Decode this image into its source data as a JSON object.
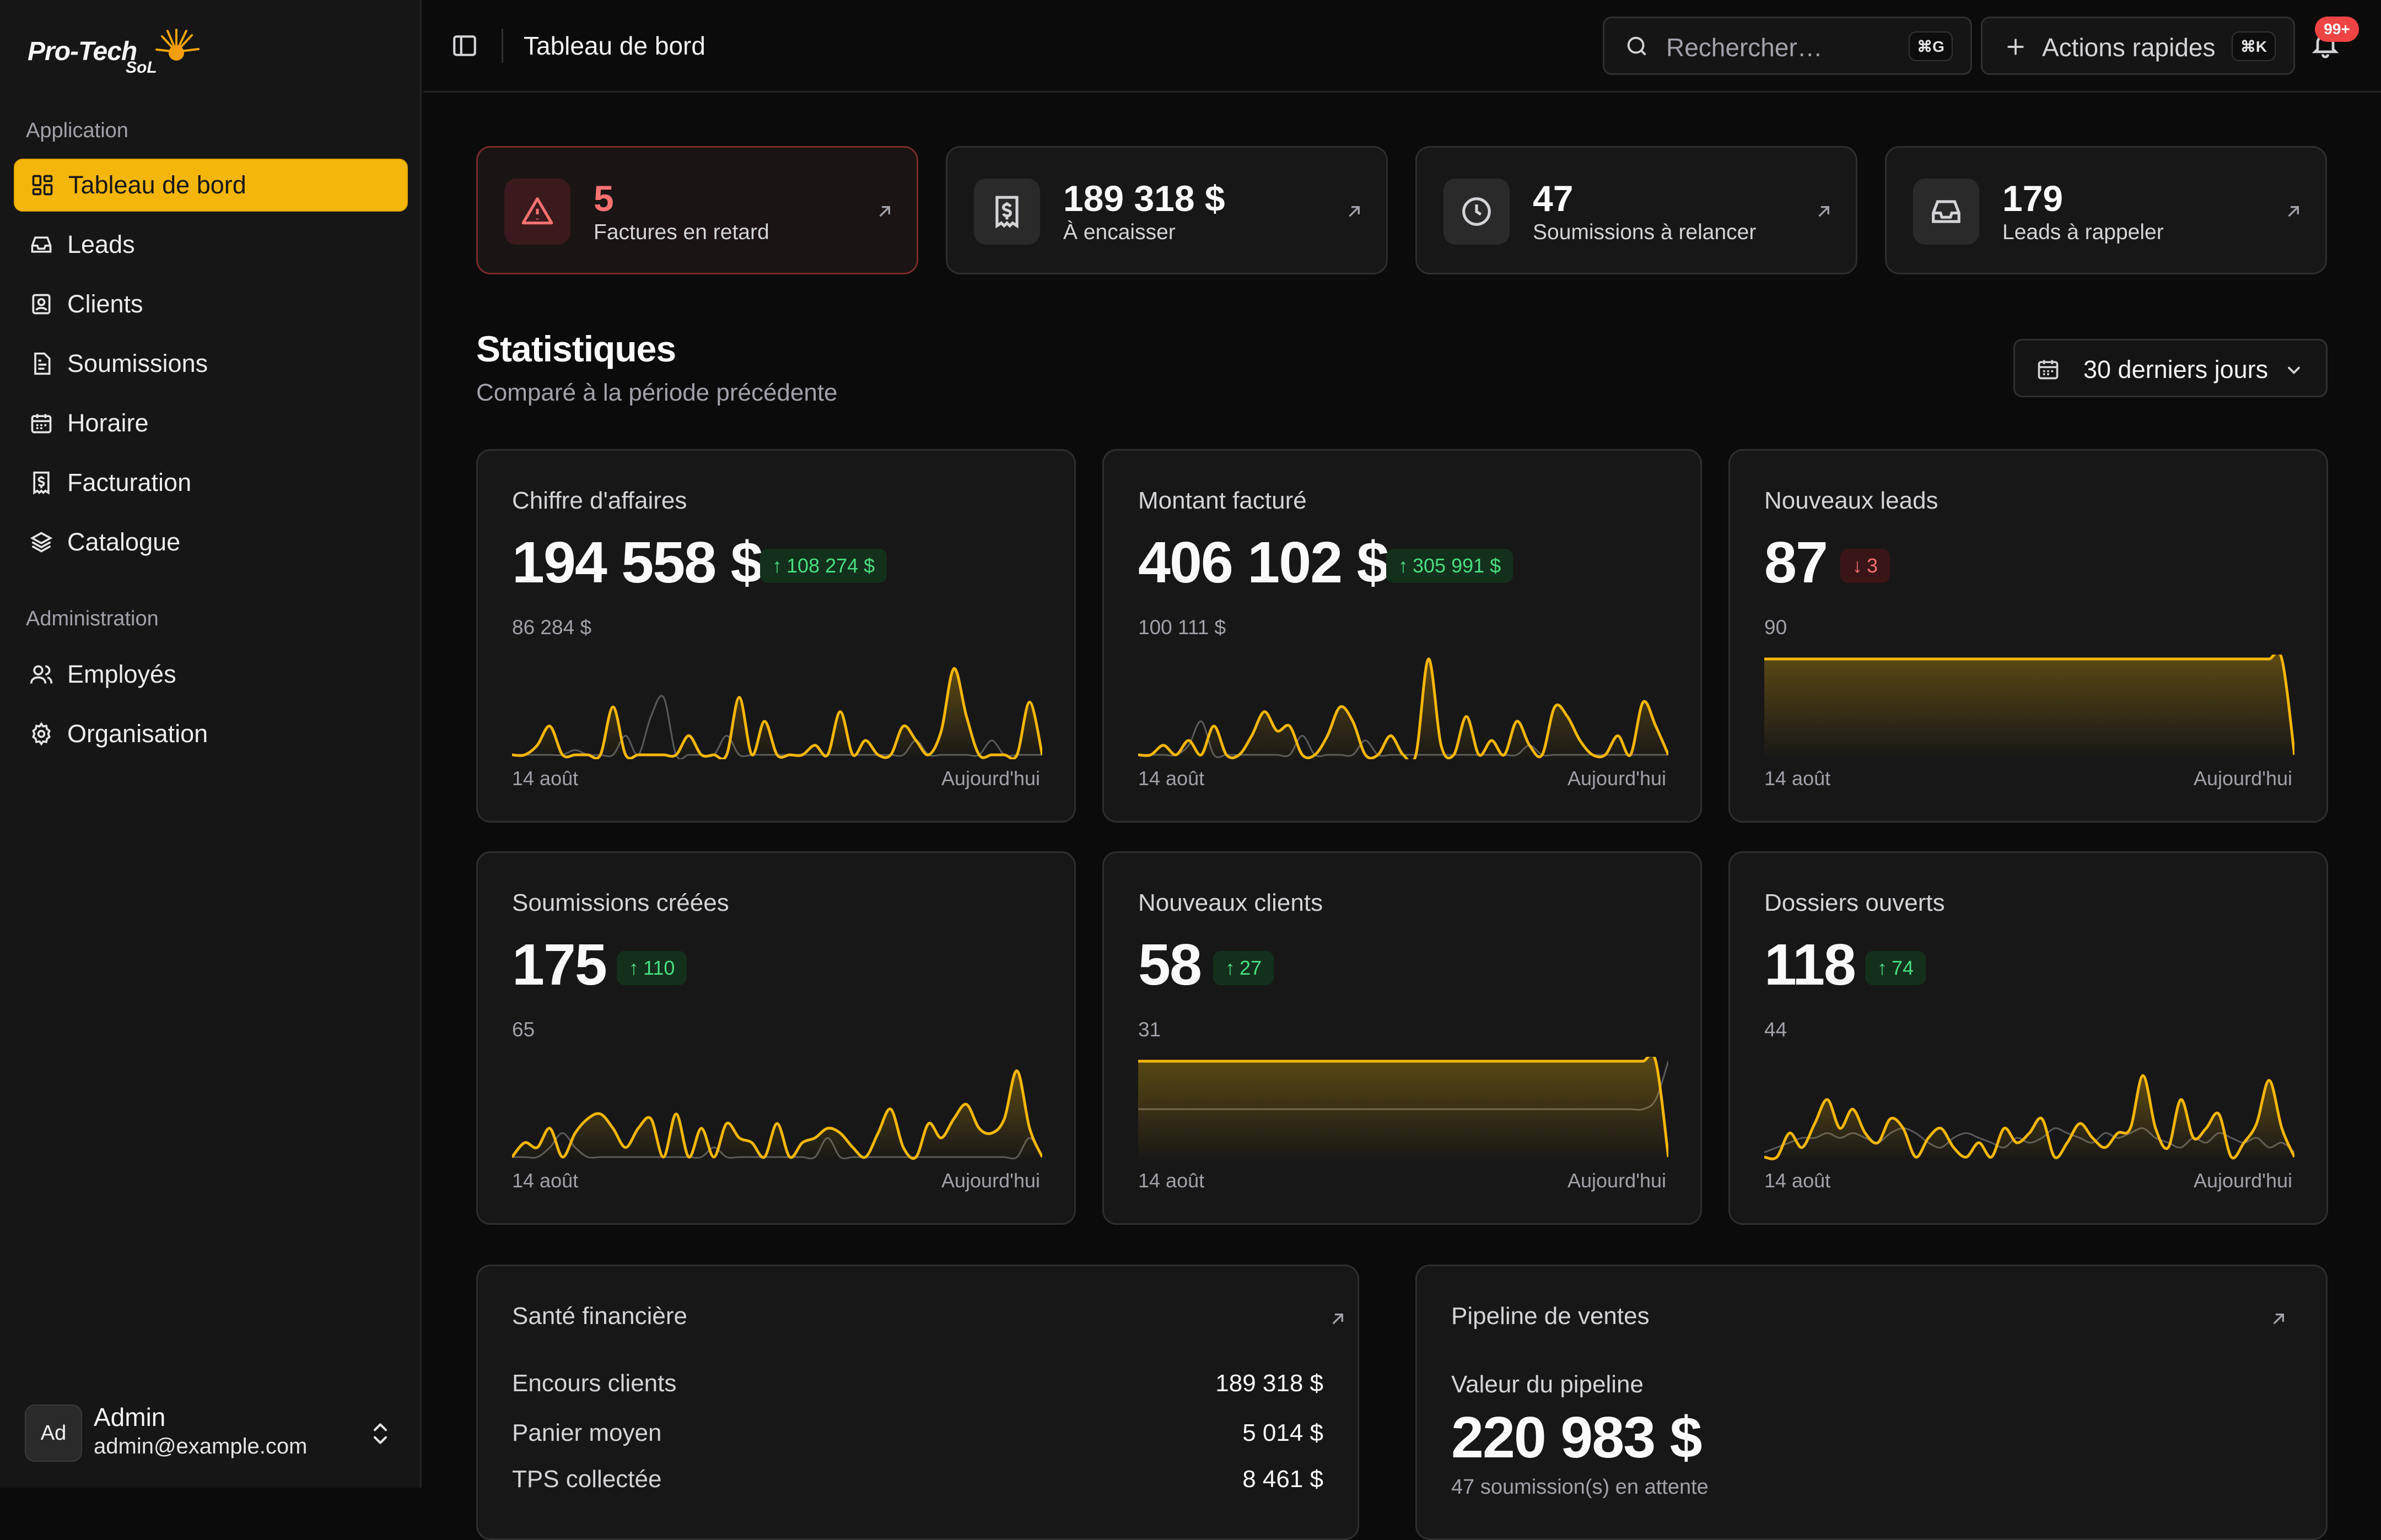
{
  "colors": {
    "accent": "#f5b60b",
    "success": "#4ade80",
    "danger": "#f87171",
    "previous_series": "#5a5a5a"
  },
  "brand": {
    "name": "Pro-Tech",
    "sub": "SoL"
  },
  "sidebar": {
    "section_application": "Application",
    "section_administration": "Administration",
    "items": [
      {
        "label": "Tableau de bord",
        "icon": "dashboard-icon",
        "active": true
      },
      {
        "label": "Leads",
        "icon": "inbox-icon"
      },
      {
        "label": "Clients",
        "icon": "contact-card-icon"
      },
      {
        "label": "Soumissions",
        "icon": "document-icon"
      },
      {
        "label": "Horaire",
        "icon": "calendar-icon"
      },
      {
        "label": "Facturation",
        "icon": "receipt-dollar-icon"
      },
      {
        "label": "Catalogue",
        "icon": "layers-icon"
      }
    ],
    "admin_items": [
      {
        "label": "Employés",
        "icon": "users-icon"
      },
      {
        "label": "Organisation",
        "icon": "gear-icon"
      }
    ],
    "user": {
      "initials": "Ad",
      "name": "Admin",
      "email": "admin@example.com"
    }
  },
  "header": {
    "title": "Tableau de bord",
    "search_placeholder": "Rechercher…",
    "search_shortcut": "⌘G",
    "quick_actions_label": "Actions rapides",
    "quick_actions_shortcut": "⌘K",
    "notification_count": "99+"
  },
  "alerts": [
    {
      "value": "5",
      "label": "Factures en retard",
      "icon": "warning-triangle-icon",
      "tone": "danger"
    },
    {
      "value": "189 318 $",
      "label": "À encaisser",
      "icon": "receipt-dollar-icon"
    },
    {
      "value": "47",
      "label": "Soumissions à relancer",
      "icon": "clock-icon"
    },
    {
      "value": "179",
      "label": "Leads à rappeler",
      "icon": "inbox-icon"
    }
  ],
  "stats": {
    "title": "Statistiques",
    "subtitle": "Comparé à la période précédente",
    "period": "30 derniers jours",
    "start_label": "14 août",
    "end_label": "Aujourd'hui",
    "cards": [
      {
        "title": "Chiffre d'affaires",
        "value": "194 558 $",
        "delta": "108 274 $",
        "direction": "up",
        "previous": "86 284 $"
      },
      {
        "title": "Montant facturé",
        "value": "406 102 $",
        "delta": "305 991 $",
        "direction": "up",
        "previous": "100 111 $"
      },
      {
        "title": "Nouveaux leads",
        "value": "87",
        "delta": "3",
        "direction": "down",
        "previous": "90"
      },
      {
        "title": "Soumissions créées",
        "value": "175",
        "delta": "110",
        "direction": "up",
        "previous": "65"
      },
      {
        "title": "Nouveaux clients",
        "value": "58",
        "delta": "27",
        "direction": "up",
        "previous": "31"
      },
      {
        "title": "Dossiers ouverts",
        "value": "118",
        "delta": "74",
        "direction": "up",
        "previous": "44"
      }
    ]
  },
  "chart_data": [
    {
      "type": "area",
      "title": "Chiffre d'affaires",
      "series": [
        {
          "values": [
            0,
            0,
            0.1,
            0.3,
            0,
            0,
            0,
            0,
            0.5,
            0,
            0,
            0,
            0,
            0,
            0.2,
            0,
            0,
            0,
            0.6,
            0,
            0.35,
            0,
            0,
            0,
            0.1,
            0,
            0.45,
            0,
            0.15,
            0,
            0,
            0.3,
            0.15,
            0,
            0.25,
            0.9,
            0.4,
            0,
            0,
            0,
            0,
            0.55,
            0
          ]
        },
        {
          "values": [
            0,
            0,
            0,
            0,
            0,
            0.05,
            0,
            0,
            0,
            0.2,
            0,
            0.4,
            0.6,
            0,
            0,
            0,
            0,
            0.2,
            0,
            0,
            0,
            0,
            0,
            0,
            0,
            0,
            0,
            0,
            0,
            0,
            0,
            0,
            0.15,
            0,
            0,
            0,
            0,
            0,
            0.15,
            0,
            0,
            0,
            0
          ]
        }
      ]
    },
    {
      "type": "area",
      "title": "Montant facturé",
      "series": [
        {
          "values": [
            0,
            0,
            0.1,
            0,
            0.15,
            0,
            0.3,
            0,
            0,
            0.2,
            0.45,
            0.25,
            0.3,
            0,
            0,
            0.2,
            0.5,
            0.35,
            0,
            0,
            0.2,
            0,
            0,
            1,
            0.1,
            0,
            0.4,
            0,
            0.15,
            0,
            0.35,
            0.1,
            0,
            0.5,
            0.4,
            0.15,
            0,
            0,
            0.2,
            0,
            0.55,
            0.3,
            0
          ]
        },
        {
          "values": [
            0,
            0,
            0,
            0,
            0.1,
            0.35,
            0,
            0,
            0,
            0,
            0,
            0,
            0,
            0.2,
            0,
            0,
            0,
            0,
            0.15,
            0,
            0,
            0,
            0,
            0,
            0,
            0,
            0,
            0,
            0,
            0,
            0,
            0.1,
            0,
            0,
            0,
            0,
            0,
            0,
            0,
            0,
            0,
            0,
            0
          ]
        }
      ]
    },
    {
      "type": "area",
      "title": "Nouveaux leads",
      "series": [
        {
          "values": [
            1,
            1,
            1,
            1,
            1,
            1,
            1,
            1,
            1,
            1,
            1,
            1,
            1,
            1,
            1,
            1,
            1,
            1,
            1,
            1,
            1,
            1,
            1,
            1,
            1,
            1,
            1,
            1,
            1,
            1,
            1,
            1,
            1,
            1,
            1,
            1,
            1,
            1,
            1,
            1,
            1,
            1,
            0
          ]
        }
      ]
    },
    {
      "type": "area",
      "title": "Soumissions créées",
      "series": [
        {
          "values": [
            0,
            0.15,
            0.1,
            0.3,
            0,
            0.25,
            0.4,
            0.45,
            0.3,
            0.1,
            0.3,
            0.4,
            0,
            0.45,
            0,
            0.3,
            0,
            0.35,
            0.2,
            0.15,
            0,
            0.35,
            0,
            0.15,
            0.2,
            0.3,
            0.25,
            0.1,
            0,
            0.25,
            0.5,
            0.1,
            0,
            0.35,
            0.2,
            0.4,
            0.55,
            0.3,
            0.25,
            0.4,
            0.9,
            0.3,
            0
          ]
        },
        {
          "values": [
            0,
            0,
            0,
            0.1,
            0.25,
            0.1,
            0,
            0,
            0,
            0,
            0,
            0,
            0,
            0,
            0,
            0,
            0.1,
            0,
            0,
            0,
            0,
            0,
            0,
            0,
            0,
            0.2,
            0,
            0,
            0,
            0,
            0,
            0,
            0,
            0,
            0,
            0,
            0,
            0,
            0,
            0,
            0,
            0.2,
            0
          ]
        }
      ]
    },
    {
      "type": "area",
      "title": "Nouveaux clients",
      "series": [
        {
          "values": [
            1,
            1,
            1,
            1,
            1,
            1,
            1,
            1,
            1,
            1,
            1,
            1,
            1,
            1,
            1,
            1,
            1,
            1,
            1,
            1,
            1,
            1,
            1,
            1,
            1,
            1,
            1,
            1,
            1,
            1,
            1,
            1,
            1,
            1,
            1,
            1,
            1,
            1,
            1,
            1,
            1,
            1,
            0
          ]
        },
        {
          "values": [
            0.5,
            0.5,
            0.5,
            0.5,
            0.5,
            0.5,
            0.5,
            0.5,
            0.5,
            0.5,
            0.5,
            0.5,
            0.5,
            0.5,
            0.5,
            0.5,
            0.5,
            0.5,
            0.5,
            0.5,
            0.5,
            0.5,
            0.5,
            0.5,
            0.5,
            0.5,
            0.5,
            0.5,
            0.5,
            0.5,
            0.5,
            0.5,
            0.5,
            0.5,
            0.5,
            0.5,
            0.5,
            0.5,
            0.5,
            0.5,
            0.5,
            0.6,
            1
          ]
        }
      ]
    },
    {
      "type": "area",
      "title": "Dossiers ouverts",
      "series": [
        {
          "values": [
            0,
            0,
            0.25,
            0.1,
            0.35,
            0.6,
            0.3,
            0.5,
            0.25,
            0.15,
            0.4,
            0.3,
            0,
            0.2,
            0.3,
            0.1,
            0,
            0.15,
            0,
            0.3,
            0.15,
            0.25,
            0.4,
            0,
            0.15,
            0.35,
            0.2,
            0.1,
            0.25,
            0.3,
            0.85,
            0.3,
            0.1,
            0.6,
            0.2,
            0.3,
            0.45,
            0,
            0.15,
            0.35,
            0.8,
            0.3,
            0
          ]
        },
        {
          "values": [
            0.05,
            0.1,
            0.15,
            0.2,
            0.2,
            0.25,
            0.2,
            0.25,
            0.2,
            0.15,
            0.25,
            0.3,
            0.25,
            0.15,
            0.1,
            0.2,
            0.25,
            0.2,
            0.15,
            0.1,
            0.2,
            0.15,
            0.2,
            0.3,
            0.25,
            0.2,
            0.15,
            0.25,
            0.2,
            0.25,
            0.3,
            0.2,
            0.15,
            0.1,
            0.2,
            0.15,
            0.25,
            0.2,
            0.15,
            0.2,
            0.1,
            0.15,
            0.05
          ]
        }
      ]
    }
  ],
  "finance": {
    "title": "Santé financière",
    "rows": [
      {
        "label": "Encours clients",
        "value": "189 318 $"
      },
      {
        "label": "Panier moyen",
        "value": "5 014 $"
      },
      {
        "label": "TPS collectée",
        "value": "8 461 $"
      }
    ]
  },
  "pipeline": {
    "title": "Pipeline de ventes",
    "label": "Valeur du pipeline",
    "value": "220 983 $",
    "sub": "47 soumission(s) en attente"
  }
}
